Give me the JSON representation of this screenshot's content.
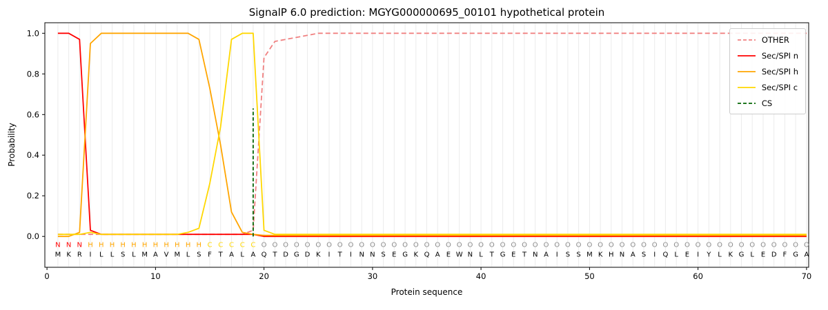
{
  "title": "SignalP 6.0 prediction: MGYG000000695_00101 hypothetical protein",
  "axes": {
    "x_label": "Protein sequence",
    "y_label": "Probability",
    "x_ticks": [
      0,
      10,
      20,
      30,
      40,
      50,
      60,
      70
    ],
    "y_ticks": [
      "0.0",
      "0.2",
      "0.4",
      "0.6",
      "0.8",
      "1.0"
    ]
  },
  "chart_data": {
    "type": "line",
    "title": "SignalP 6.0 prediction: MGYG000000695_00101 hypothetical protein",
    "xlabel": "Protein sequence",
    "ylabel": "Probability",
    "xlim": [
      -0.2,
      70.2
    ],
    "ylim": [
      -0.152,
      1.052
    ],
    "grid": "vertical-line-per-residue",
    "sequence": "MKRILLSLMAVMLSFTALAQTDGDKITINNSEGKQAEWNLTGETNAISSMKHNASIQLEIYLKGLEDFGA",
    "regions": [
      {
        "label": "N",
        "start": 1,
        "end": 3,
        "color": "#ff0000"
      },
      {
        "label": "H",
        "start": 4,
        "end": 14,
        "color": "#ffa500"
      },
      {
        "label": "C",
        "start": 15,
        "end": 19,
        "color": "#ffd700"
      },
      {
        "label": "O",
        "start": 20,
        "end": 70,
        "color": "#8a8a8a"
      }
    ],
    "series": [
      {
        "name": "OTHER",
        "color": "#f08080",
        "dash": "7 4",
        "values": [
          0.01,
          0.01,
          0.01,
          0.01,
          0.01,
          0.01,
          0.01,
          0.01,
          0.01,
          0.01,
          0.01,
          0.01,
          0.01,
          0.01,
          0.01,
          0.01,
          0.01,
          0.01,
          0.03,
          0.88,
          0.96,
          0.97,
          0.98,
          0.99,
          1.0,
          1.0,
          1.0,
          1.0,
          1.0,
          1.0,
          1.0,
          1.0,
          1.0,
          1.0,
          1.0,
          1.0,
          1.0,
          1.0,
          1.0,
          1.0,
          1.0,
          1.0,
          1.0,
          1.0,
          1.0,
          1.0,
          1.0,
          1.0,
          1.0,
          1.0,
          1.0,
          1.0,
          1.0,
          1.0,
          1.0,
          1.0,
          1.0,
          1.0,
          1.0,
          1.0,
          1.0,
          1.0,
          1.0,
          1.0,
          1.0,
          1.0,
          1.0,
          1.0,
          1.0,
          1.0
        ]
      },
      {
        "name": "Sec/SPI n",
        "color": "#ff0000",
        "dash": null,
        "values": [
          1.0,
          1.0,
          0.97,
          0.03,
          0.01,
          0.01,
          0.01,
          0.01,
          0.01,
          0.01,
          0.01,
          0.01,
          0.01,
          0.01,
          0.01,
          0.01,
          0.01,
          0.01,
          0.01,
          0.0,
          0.0,
          0.0,
          0.0,
          0.0,
          0.0,
          0.0,
          0.0,
          0.0,
          0.0,
          0.0,
          0.0,
          0.0,
          0.0,
          0.0,
          0.0,
          0.0,
          0.0,
          0.0,
          0.0,
          0.0,
          0.0,
          0.0,
          0.0,
          0.0,
          0.0,
          0.0,
          0.0,
          0.0,
          0.0,
          0.0,
          0.0,
          0.0,
          0.0,
          0.0,
          0.0,
          0.0,
          0.0,
          0.0,
          0.0,
          0.0,
          0.0,
          0.0,
          0.0,
          0.0,
          0.0,
          0.0,
          0.0,
          0.0,
          0.0,
          0.0
        ]
      },
      {
        "name": "Sec/SPI h",
        "color": "#ffa500",
        "dash": null,
        "values": [
          0.0,
          0.0,
          0.02,
          0.95,
          1.0,
          1.0,
          1.0,
          1.0,
          1.0,
          1.0,
          1.0,
          1.0,
          1.0,
          0.97,
          0.73,
          0.45,
          0.12,
          0.02,
          0.01,
          0.005,
          0.005,
          0.005,
          0.005,
          0.005,
          0.005,
          0.005,
          0.005,
          0.005,
          0.005,
          0.005,
          0.005,
          0.005,
          0.005,
          0.005,
          0.005,
          0.005,
          0.005,
          0.005,
          0.005,
          0.005,
          0.005,
          0.005,
          0.005,
          0.005,
          0.005,
          0.005,
          0.005,
          0.005,
          0.005,
          0.005,
          0.005,
          0.005,
          0.005,
          0.005,
          0.005,
          0.005,
          0.005,
          0.005,
          0.005,
          0.005,
          0.005,
          0.005,
          0.005,
          0.005,
          0.005,
          0.005,
          0.005,
          0.005,
          0.005,
          0.005
        ]
      },
      {
        "name": "Sec/SPI c",
        "color": "#ffd700",
        "dash": null,
        "values": [
          0.01,
          0.01,
          0.01,
          0.02,
          0.01,
          0.01,
          0.01,
          0.01,
          0.01,
          0.01,
          0.01,
          0.01,
          0.02,
          0.04,
          0.26,
          0.54,
          0.97,
          1.0,
          1.0,
          0.03,
          0.01,
          0.01,
          0.01,
          0.01,
          0.01,
          0.01,
          0.01,
          0.01,
          0.01,
          0.01,
          0.01,
          0.01,
          0.01,
          0.01,
          0.01,
          0.01,
          0.01,
          0.01,
          0.01,
          0.01,
          0.01,
          0.01,
          0.01,
          0.01,
          0.01,
          0.01,
          0.01,
          0.01,
          0.01,
          0.01,
          0.01,
          0.01,
          0.01,
          0.01,
          0.01,
          0.01,
          0.01,
          0.01,
          0.01,
          0.01,
          0.01,
          0.01,
          0.01,
          0.01,
          0.01,
          0.01,
          0.01,
          0.01,
          0.01,
          0.01
        ]
      }
    ],
    "cs": {
      "name": "CS",
      "position": 19,
      "ymax": 0.63,
      "color": "#006400",
      "dash": "5 3"
    }
  },
  "legend": {
    "items": [
      {
        "label": "OTHER",
        "color": "#f08080",
        "dashed": true
      },
      {
        "label": "Sec/SPI n",
        "color": "#ff0000",
        "dashed": false
      },
      {
        "label": "Sec/SPI h",
        "color": "#ffa500",
        "dashed": false
      },
      {
        "label": "Sec/SPI c",
        "color": "#ffd700",
        "dashed": false
      },
      {
        "label": "CS",
        "color": "#006400",
        "dashed": true
      }
    ]
  }
}
